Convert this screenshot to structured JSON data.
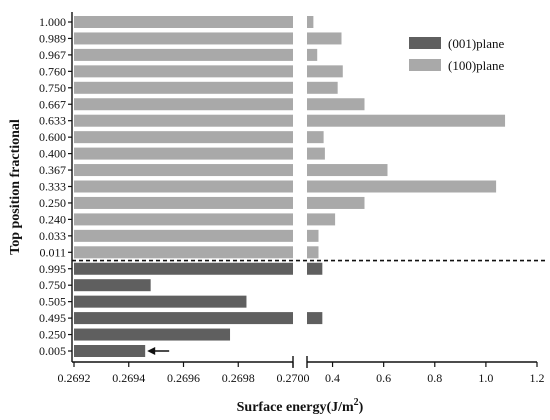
{
  "chart_data": {
    "type": "bar",
    "orientation": "horizontal",
    "broken_x_axis": true,
    "xlabel": "Surface energy(J/m",
    "xlabel_sup": "2",
    "xlabel_close": ")",
    "ylabel": "Top position fractional",
    "left_axis": {
      "range": [
        0.2692,
        0.27
      ],
      "ticks": [
        "0.2692",
        "0.2694",
        "0.2696",
        "0.2698",
        "0.2700"
      ]
    },
    "right_axis": {
      "range": [
        0.3,
        1.2
      ],
      "ticks": [
        "0.4",
        "0.6",
        "0.8",
        "1.0",
        "1.2"
      ]
    },
    "categories": [
      "1.000",
      "0.989",
      "0.967",
      "0.760",
      "0.750",
      "0.667",
      "0.633",
      "0.600",
      "0.400",
      "0.367",
      "0.333",
      "0.250",
      "0.240",
      "0.033",
      "0.011",
      "0.995",
      "0.750",
      "0.505",
      "0.495",
      "0.250",
      "0.005"
    ],
    "series_names": [
      "(001)plane",
      "(100)plane"
    ],
    "series_index": [
      1,
      1,
      1,
      1,
      1,
      1,
      1,
      1,
      1,
      1,
      1,
      1,
      1,
      1,
      1,
      0,
      0,
      0,
      0,
      0,
      0
    ],
    "values": [
      0.325,
      0.435,
      0.34,
      0.44,
      0.42,
      0.525,
      1.075,
      0.365,
      0.37,
      0.615,
      1.04,
      0.525,
      0.41,
      0.345,
      0.345,
      0.36,
      0.26948,
      0.26983,
      0.36,
      0.26977,
      0.26946
    ],
    "colors": {
      "(001)plane": "#5f5f5f",
      "(100)plane": "#a9a9a9"
    },
    "separator": {
      "between_index": 14,
      "style": "dashed"
    },
    "arrow_at_category_index": 20,
    "legend": {
      "position": "top-right"
    },
    "grid": false
  }
}
